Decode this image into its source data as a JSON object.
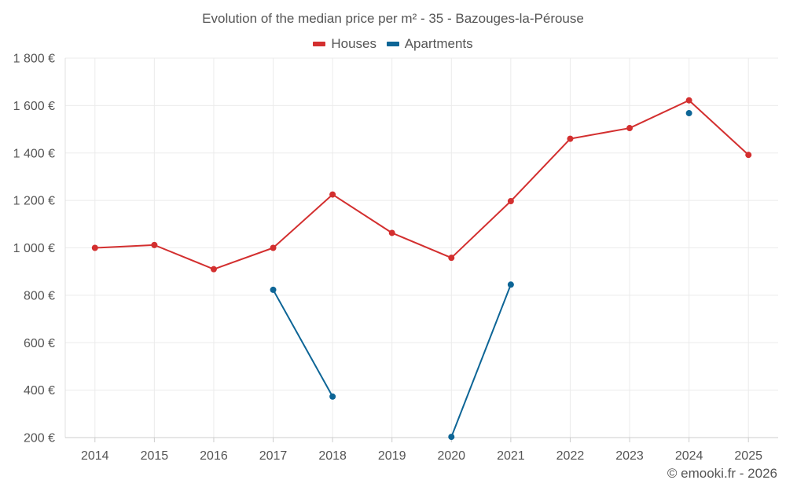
{
  "chart_data": {
    "type": "line",
    "title": "Evolution of the median price per m² - 35 - Bazouges-la-Pérouse",
    "categories": [
      "2014",
      "2015",
      "2016",
      "2017",
      "2018",
      "2019",
      "2020",
      "2021",
      "2022",
      "2023",
      "2024",
      "2025"
    ],
    "yticks": [
      "200 €",
      "400 €",
      "600 €",
      "800 €",
      "1 000 €",
      "1 200 €",
      "1 400 €",
      "1 600 €",
      "1 800 €"
    ],
    "ylim": [
      200,
      1800
    ],
    "legend_position": "top-center",
    "series": [
      {
        "name": "Houses",
        "color": "#d32f2f",
        "values": [
          1000,
          1012,
          910,
          1000,
          1225,
          1063,
          958,
          1197,
          1460,
          1505,
          1622,
          1392
        ]
      },
      {
        "name": "Apartments",
        "color": "#0d6596",
        "values": [
          null,
          null,
          null,
          823,
          373,
          null,
          203,
          845,
          null,
          null,
          1568,
          null
        ]
      }
    ]
  },
  "credit": "© emooki.fr - 2026"
}
